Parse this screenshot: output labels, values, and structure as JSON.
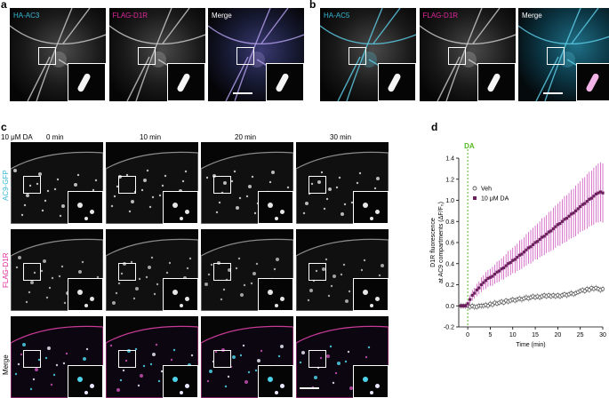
{
  "panel_a": {
    "letter": "a",
    "channels": [
      "HA-AC3",
      "FLAG-D1R",
      "Merge"
    ]
  },
  "panel_b": {
    "letter": "b",
    "channels": [
      "HA-AC5",
      "FLAG-D1R",
      "Merge"
    ]
  },
  "panel_c": {
    "letter": "c",
    "treatment": "10 μM DA",
    "timepoints": [
      "0 min",
      "10 min",
      "20 min",
      "30 min"
    ],
    "rows": [
      "AC9-GFP",
      "FLAG-D1R",
      "Merge"
    ]
  },
  "panel_d": {
    "letter": "d"
  },
  "colors": {
    "cyan": "#38b8d6",
    "magenta": "#e0279a",
    "veh": "#555555",
    "da": "#6a1f5c",
    "da_error": "#c63bb3",
    "da_line": "#55b81e"
  },
  "chart_data": {
    "type": "line",
    "xlabel": "Time (min)",
    "ylabel": "D1R fluorescence  at AC9 compartments (ΔF/F₀)",
    "xlim": [
      -2,
      30
    ],
    "ylim": [
      -0.2,
      1.4
    ],
    "xticks": [
      0,
      5,
      10,
      15,
      20,
      25,
      30
    ],
    "yticks": [
      -0.2,
      0.0,
      0.2,
      0.4,
      0.6,
      0.8,
      1.0,
      1.2,
      1.4
    ],
    "ytick_labels": [
      "-0.2",
      "0.0",
      "0.2",
      "0.4",
      "0.6",
      "0.8",
      "1.0",
      "1.2",
      "1.4"
    ],
    "annotation": {
      "label": "DA",
      "x": 0
    },
    "legend": {
      "position": "top-right",
      "entries": [
        "Veh",
        "10 μM DA"
      ]
    },
    "series": [
      {
        "name": "Veh",
        "marker": "circle",
        "x": [
          -1.5,
          -1,
          -0.5,
          0,
          0.5,
          1,
          1.5,
          2,
          2.5,
          3,
          3.5,
          4,
          4.5,
          5,
          5.5,
          6,
          6.5,
          7,
          7.5,
          8,
          8.5,
          9,
          9.5,
          10,
          10.5,
          11,
          11.5,
          12,
          12.5,
          13,
          13.5,
          14,
          14.5,
          15,
          15.5,
          16,
          16.5,
          17,
          17.5,
          18,
          18.5,
          19,
          19.5,
          20,
          20.5,
          21,
          21.5,
          22,
          22.5,
          23,
          23.5,
          24,
          24.5,
          25,
          25.5,
          26,
          26.5,
          27,
          27.5,
          28,
          28.5,
          29,
          29.5,
          30
        ],
        "y": [
          0.0,
          0.0,
          0.0,
          0.0,
          -0.01,
          0.0,
          -0.01,
          -0.01,
          0.0,
          0.0,
          0.0,
          0.01,
          0.0,
          0.02,
          0.01,
          0.03,
          0.02,
          0.03,
          0.04,
          0.03,
          0.05,
          0.04,
          0.05,
          0.06,
          0.05,
          0.06,
          0.07,
          0.06,
          0.07,
          0.08,
          0.07,
          0.08,
          0.09,
          0.08,
          0.09,
          0.08,
          0.09,
          0.1,
          0.09,
          0.1,
          0.09,
          0.1,
          0.09,
          0.1,
          0.09,
          0.1,
          0.11,
          0.1,
          0.11,
          0.12,
          0.11,
          0.12,
          0.13,
          0.14,
          0.15,
          0.14,
          0.16,
          0.15,
          0.17,
          0.16,
          0.17,
          0.16,
          0.15,
          0.16
        ],
        "error": 0.03
      },
      {
        "name": "10 μM DA",
        "marker": "square",
        "x": [
          -1.5,
          -1,
          -0.5,
          0,
          0.5,
          1,
          1.5,
          2,
          2.5,
          3,
          3.5,
          4,
          4.5,
          5,
          5.5,
          6,
          6.5,
          7,
          7.5,
          8,
          8.5,
          9,
          9.5,
          10,
          10.5,
          11,
          11.5,
          12,
          12.5,
          13,
          13.5,
          14,
          14.5,
          15,
          15.5,
          16,
          16.5,
          17,
          17.5,
          18,
          18.5,
          19,
          19.5,
          20,
          20.5,
          21,
          21.5,
          22,
          22.5,
          23,
          23.5,
          24,
          24.5,
          25,
          25.5,
          26,
          26.5,
          27,
          27.5,
          28,
          28.5,
          29,
          29.5,
          30
        ],
        "y": [
          0.0,
          0.0,
          0.0,
          0.02,
          0.06,
          0.1,
          0.12,
          0.15,
          0.17,
          0.2,
          0.22,
          0.24,
          0.26,
          0.27,
          0.28,
          0.3,
          0.32,
          0.33,
          0.35,
          0.36,
          0.38,
          0.4,
          0.41,
          0.43,
          0.44,
          0.46,
          0.48,
          0.49,
          0.51,
          0.53,
          0.55,
          0.56,
          0.58,
          0.6,
          0.61,
          0.63,
          0.65,
          0.66,
          0.68,
          0.7,
          0.71,
          0.73,
          0.75,
          0.77,
          0.78,
          0.8,
          0.82,
          0.83,
          0.85,
          0.87,
          0.88,
          0.9,
          0.92,
          0.94,
          0.96,
          0.97,
          0.99,
          1.01,
          1.02,
          1.04,
          1.06,
          1.07,
          1.08,
          1.07
        ],
        "error": [
          0.02,
          0.02,
          0.02,
          0.03,
          0.04,
          0.05,
          0.05,
          0.06,
          0.06,
          0.07,
          0.07,
          0.08,
          0.08,
          0.08,
          0.09,
          0.09,
          0.1,
          0.1,
          0.1,
          0.11,
          0.11,
          0.12,
          0.12,
          0.12,
          0.13,
          0.13,
          0.14,
          0.14,
          0.14,
          0.15,
          0.15,
          0.16,
          0.16,
          0.16,
          0.17,
          0.17,
          0.18,
          0.18,
          0.18,
          0.19,
          0.19,
          0.2,
          0.2,
          0.2,
          0.21,
          0.21,
          0.22,
          0.22,
          0.22,
          0.23,
          0.23,
          0.24,
          0.24,
          0.24,
          0.25,
          0.25,
          0.26,
          0.26,
          0.26,
          0.27,
          0.27,
          0.28,
          0.28,
          0.28
        ]
      }
    ]
  }
}
